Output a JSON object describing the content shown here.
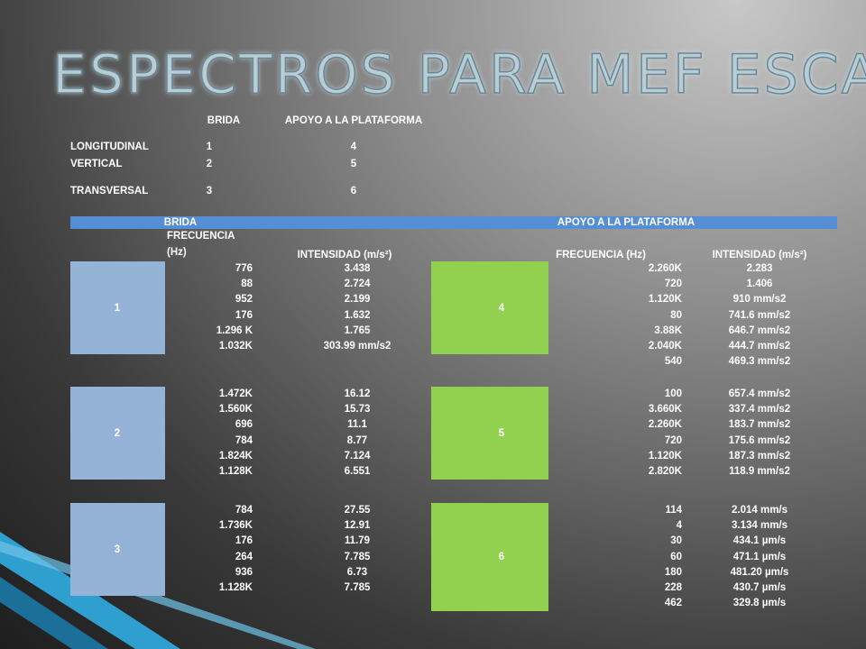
{
  "title": "ESPECTROS PARA MEF ESCAPE",
  "summary_table": {
    "header": [
      "BRIDA",
      "APOYO A LA PLATAFORMA"
    ],
    "rows": [
      [
        "LONGITUDINAL",
        "1",
        "4"
      ],
      [
        "VERTICAL",
        "2",
        "5"
      ],
      [
        "TRANSVERSAL",
        "3",
        "6"
      ]
    ]
  },
  "spectra_table": {
    "group_header": [
      "BRIDA",
      "APOYO A LA PLATAFORMA"
    ],
    "column_header": [
      "FRECUENCIA (Hz)",
      "INTENSIDAD (m/s²)",
      "FRECUENCIA  (Hz)",
      "INTENSIDAD (m/s²)"
    ],
    "groups": [
      {
        "brida_label": "1",
        "brida_rows": [
          [
            "776",
            "3.438"
          ],
          [
            "88",
            "2.724"
          ],
          [
            "952",
            "2.199"
          ],
          [
            "176",
            "1.632"
          ],
          [
            "1.296 K",
            "1.765"
          ],
          [
            "1.032K",
            "303.99 mm/s2"
          ]
        ],
        "apoyo_label": "4",
        "apoyo_rows": [
          [
            "2.260K",
            "2.283"
          ],
          [
            "720",
            "1.406"
          ],
          [
            "1.120K",
            "910 mm/s2"
          ],
          [
            "80",
            "741.6 mm/s2"
          ],
          [
            "3.88K",
            "646.7 mm/s2"
          ],
          [
            "2.040K",
            "444.7 mm/s2"
          ],
          [
            "540",
            "469.3 mm/s2"
          ]
        ]
      },
      {
        "brida_label": "2",
        "brida_rows": [
          [
            "1.472K",
            "16.12"
          ],
          [
            "1.560K",
            "15.73"
          ],
          [
            "696",
            "11.1"
          ],
          [
            "784",
            "8.77"
          ],
          [
            "1.824K",
            "7.124"
          ],
          [
            "1.128K",
            "6.551"
          ]
        ],
        "apoyo_label": "5",
        "apoyo_rows": [
          [
            "100",
            "657.4 mm/s2"
          ],
          [
            "3.660K",
            "337.4 mm/s2"
          ],
          [
            "2.260K",
            "183.7 mm/s2"
          ],
          [
            "720",
            "175.6 mm/s2"
          ],
          [
            "1.120K",
            "187.3 mm/s2"
          ],
          [
            "2.820K",
            "118.9 mm/s2"
          ]
        ]
      },
      {
        "brida_label": "3",
        "brida_rows": [
          [
            "784",
            "27.55"
          ],
          [
            "1.736K",
            "12.91"
          ],
          [
            "176",
            "11.79"
          ],
          [
            "264",
            "7.785"
          ],
          [
            "936",
            "6.73"
          ],
          [
            "1.128K",
            "7.785"
          ]
        ],
        "apoyo_label": "6",
        "apoyo_rows": [
          [
            "114",
            "2.014 mm/s"
          ],
          [
            "4",
            "3.134 mm/s"
          ],
          [
            "30",
            "434.1 µm/s"
          ],
          [
            "60",
            "471.1  µm/s"
          ],
          [
            "180",
            "481.20 µm/s"
          ],
          [
            "228",
            "430.7 µm/s"
          ],
          [
            "462",
            "329.8 µm/s"
          ]
        ]
      }
    ]
  }
}
